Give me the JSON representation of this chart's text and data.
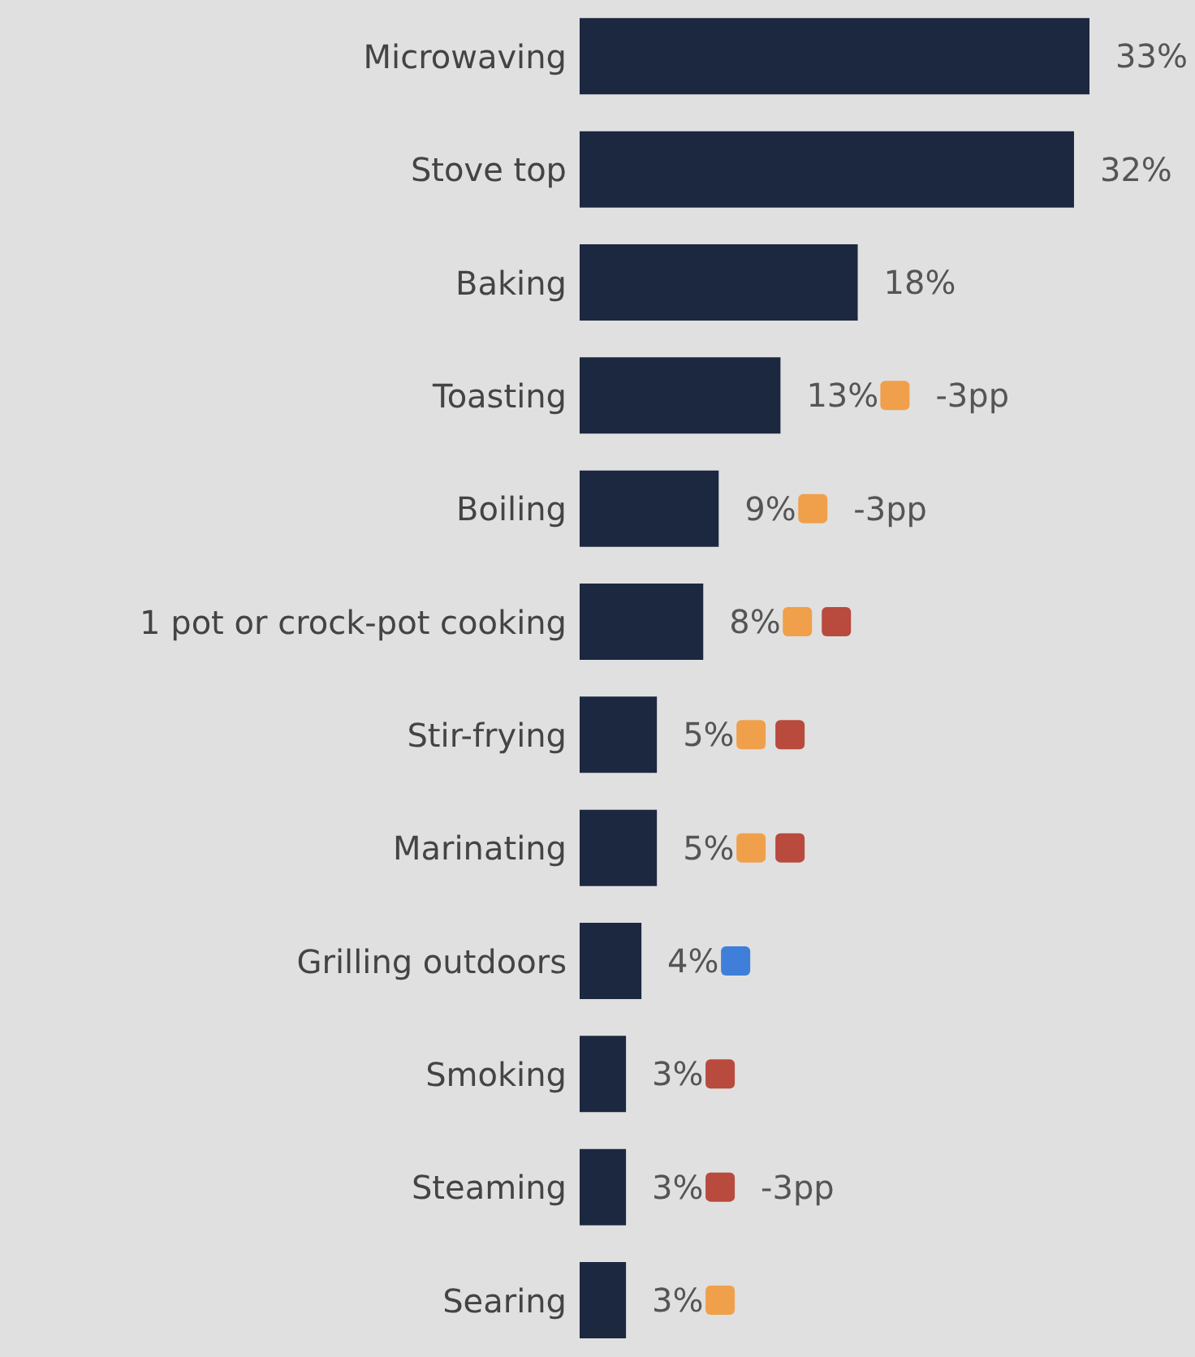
{
  "chart_data": {
    "type": "bar",
    "orientation": "horizontal",
    "categories": [
      "Microwaving",
      "Stove top",
      "Baking",
      "Toasting",
      "Boiling",
      "1 pot or crock-pot cooking",
      "Stir-frying",
      "Marinating",
      "Grilling outdoors",
      "Smoking",
      "Steaming",
      "Searing"
    ],
    "values": [
      33,
      32,
      18,
      13,
      9,
      8,
      5,
      5,
      4,
      3,
      3,
      3
    ],
    "value_labels": [
      "33%",
      "32%",
      "18%",
      "13%",
      "9%",
      "8%",
      "5%",
      "5%",
      "4%",
      "3%",
      "3%",
      "3%"
    ],
    "color": "#1b2840",
    "annotations": [
      "-3pp",
      "-3pp",
      "-3pp"
    ],
    "grid": false,
    "legend": false
  }
}
